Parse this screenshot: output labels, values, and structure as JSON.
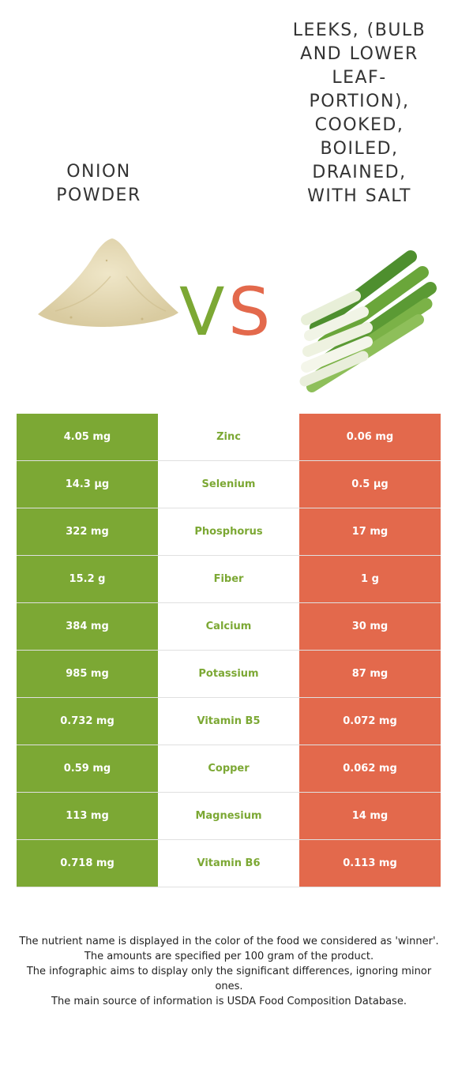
{
  "left_food": {
    "name": "Onion powder",
    "color": "#7ca834"
  },
  "right_food": {
    "name": "Leeks, (bulb and lower leaf-portion), cooked, boiled, drained, with salt",
    "color": "#e3694c"
  },
  "vs": {
    "v": "V",
    "s": "S"
  },
  "rows": [
    {
      "nutrient": "Zinc",
      "left": "4.05 mg",
      "right": "0.06 mg"
    },
    {
      "nutrient": "Selenium",
      "left": "14.3 µg",
      "right": "0.5 µg"
    },
    {
      "nutrient": "Phosphorus",
      "left": "322 mg",
      "right": "17 mg"
    },
    {
      "nutrient": "Fiber",
      "left": "15.2 g",
      "right": "1 g"
    },
    {
      "nutrient": "Calcium",
      "left": "384 mg",
      "right": "30 mg"
    },
    {
      "nutrient": "Potassium",
      "left": "985 mg",
      "right": "87 mg"
    },
    {
      "nutrient": "Vitamin B5",
      "left": "0.732 mg",
      "right": "0.072 mg"
    },
    {
      "nutrient": "Copper",
      "left": "0.59 mg",
      "right": "0.062 mg"
    },
    {
      "nutrient": "Magnesium",
      "left": "113 mg",
      "right": "14 mg"
    },
    {
      "nutrient": "Vitamin B6",
      "left": "0.718 mg",
      "right": "0.113 mg"
    }
  ],
  "footer": [
    "The nutrient name is displayed in the color of the food we considered as 'winner'.",
    "The amounts are specified per 100 gram of the product.",
    "The infographic aims to display only the significant differences, ignoring minor ones.",
    "The main source of information is USDA Food Composition Database."
  ]
}
